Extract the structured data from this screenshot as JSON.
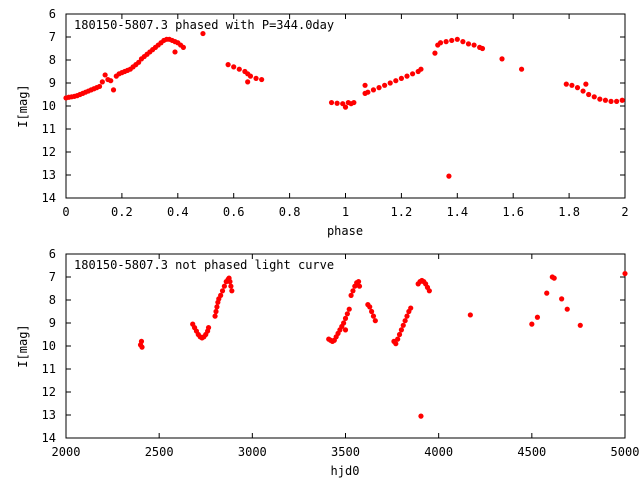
{
  "chart_data": [
    {
      "type": "scatter",
      "title": "180150-5807.3 phased with P=344.0day",
      "xlabel": "phase",
      "ylabel": "I[mag]",
      "xlim": [
        0,
        2
      ],
      "ylim": [
        6,
        14
      ],
      "y_inverted": true,
      "x_ticks": [
        "0",
        "0.2",
        "0.4",
        "0.6",
        "0.8",
        "1",
        "1.2",
        "1.4",
        "1.6",
        "1.8",
        "2"
      ],
      "y_ticks": [
        "6",
        "7",
        "8",
        "9",
        "10",
        "11",
        "12",
        "13",
        "14"
      ],
      "grid": false,
      "marker_color": "#ff0000",
      "series": [
        {
          "points": [
            [
              0.0,
              9.65
            ],
            [
              0.01,
              9.62
            ],
            [
              0.02,
              9.6
            ],
            [
              0.03,
              9.58
            ],
            [
              0.04,
              9.55
            ],
            [
              0.05,
              9.5
            ],
            [
              0.06,
              9.45
            ],
            [
              0.07,
              9.4
            ],
            [
              0.08,
              9.35
            ],
            [
              0.09,
              9.3
            ],
            [
              0.1,
              9.25
            ],
            [
              0.11,
              9.2
            ],
            [
              0.12,
              9.15
            ],
            [
              0.13,
              8.95
            ],
            [
              0.14,
              8.65
            ],
            [
              0.15,
              8.85
            ],
            [
              0.16,
              8.9
            ],
            [
              0.17,
              9.3
            ],
            [
              0.18,
              8.7
            ],
            [
              0.19,
              8.6
            ],
            [
              0.2,
              8.55
            ],
            [
              0.21,
              8.5
            ],
            [
              0.22,
              8.45
            ],
            [
              0.23,
              8.4
            ],
            [
              0.24,
              8.3
            ],
            [
              0.25,
              8.2
            ],
            [
              0.26,
              8.1
            ],
            [
              0.27,
              7.95
            ],
            [
              0.28,
              7.85
            ],
            [
              0.29,
              7.75
            ],
            [
              0.3,
              7.65
            ],
            [
              0.31,
              7.55
            ],
            [
              0.32,
              7.45
            ],
            [
              0.33,
              7.35
            ],
            [
              0.34,
              7.25
            ],
            [
              0.35,
              7.15
            ],
            [
              0.36,
              7.1
            ],
            [
              0.37,
              7.1
            ],
            [
              0.38,
              7.15
            ],
            [
              0.39,
              7.2
            ],
            [
              0.4,
              7.25
            ],
            [
              0.41,
              7.35
            ],
            [
              0.42,
              7.45
            ],
            [
              0.39,
              7.65
            ],
            [
              0.49,
              6.85
            ],
            [
              0.58,
              8.2
            ],
            [
              0.6,
              8.3
            ],
            [
              0.62,
              8.4
            ],
            [
              0.64,
              8.5
            ],
            [
              0.65,
              8.6
            ],
            [
              0.66,
              8.7
            ],
            [
              0.68,
              8.8
            ],
            [
              0.7,
              8.85
            ],
            [
              0.65,
              8.95
            ],
            [
              0.95,
              9.85
            ],
            [
              0.97,
              9.88
            ],
            [
              0.99,
              9.9
            ],
            [
              1.0,
              10.05
            ],
            [
              1.01,
              9.85
            ],
            [
              1.02,
              9.9
            ],
            [
              1.03,
              9.85
            ],
            [
              1.07,
              9.45
            ],
            [
              1.08,
              9.4
            ],
            [
              1.07,
              9.1
            ],
            [
              1.1,
              9.3
            ],
            [
              1.12,
              9.2
            ],
            [
              1.14,
              9.1
            ],
            [
              1.16,
              9.0
            ],
            [
              1.18,
              8.9
            ],
            [
              1.2,
              8.8
            ],
            [
              1.22,
              8.7
            ],
            [
              1.24,
              8.6
            ],
            [
              1.26,
              8.5
            ],
            [
              1.27,
              8.4
            ],
            [
              1.32,
              7.7
            ],
            [
              1.33,
              7.35
            ],
            [
              1.34,
              7.25
            ],
            [
              1.36,
              7.2
            ],
            [
              1.38,
              7.15
            ],
            [
              1.4,
              7.1
            ],
            [
              1.42,
              7.2
            ],
            [
              1.44,
              7.3
            ],
            [
              1.46,
              7.35
            ],
            [
              1.48,
              7.45
            ],
            [
              1.49,
              7.5
            ],
            [
              1.37,
              13.05
            ],
            [
              1.56,
              7.95
            ],
            [
              1.63,
              8.4
            ],
            [
              1.79,
              9.05
            ],
            [
              1.81,
              9.1
            ],
            [
              1.83,
              9.2
            ],
            [
              1.85,
              9.35
            ],
            [
              1.87,
              9.5
            ],
            [
              1.89,
              9.6
            ],
            [
              1.91,
              9.7
            ],
            [
              1.93,
              9.75
            ],
            [
              1.95,
              9.8
            ],
            [
              1.97,
              9.8
            ],
            [
              1.99,
              9.75
            ],
            [
              1.86,
              9.05
            ]
          ]
        }
      ]
    },
    {
      "type": "scatter",
      "title": "180150-5807.3 not phased light curve",
      "xlabel": "hjd0",
      "ylabel": "I[mag]",
      "xlim": [
        2000,
        5000
      ],
      "ylim": [
        6,
        14
      ],
      "y_inverted": true,
      "x_ticks": [
        "2000",
        "2500",
        "3000",
        "3500",
        "4000",
        "4500",
        "5000"
      ],
      "y_ticks": [
        "6",
        "7",
        "8",
        "9",
        "10",
        "11",
        "12",
        "13",
        "14"
      ],
      "grid": false,
      "marker_color": "#ff0000",
      "series": [
        {
          "points": [
            [
              2400,
              9.95
            ],
            [
              2405,
              9.8
            ],
            [
              2408,
              10.05
            ],
            [
              2680,
              9.05
            ],
            [
              2690,
              9.2
            ],
            [
              2700,
              9.35
            ],
            [
              2710,
              9.5
            ],
            [
              2720,
              9.6
            ],
            [
              2730,
              9.65
            ],
            [
              2740,
              9.6
            ],
            [
              2750,
              9.5
            ],
            [
              2760,
              9.35
            ],
            [
              2765,
              9.2
            ],
            [
              2800,
              8.7
            ],
            [
              2805,
              8.5
            ],
            [
              2810,
              8.3
            ],
            [
              2815,
              8.1
            ],
            [
              2820,
              7.95
            ],
            [
              2830,
              7.8
            ],
            [
              2840,
              7.6
            ],
            [
              2850,
              7.4
            ],
            [
              2860,
              7.2
            ],
            [
              2870,
              7.1
            ],
            [
              2875,
              7.05
            ],
            [
              2880,
              7.2
            ],
            [
              2885,
              7.4
            ],
            [
              2890,
              7.6
            ],
            [
              3410,
              9.7
            ],
            [
              3420,
              9.75
            ],
            [
              3430,
              9.8
            ],
            [
              3440,
              9.75
            ],
            [
              3450,
              9.6
            ],
            [
              3460,
              9.45
            ],
            [
              3470,
              9.3
            ],
            [
              3480,
              9.15
            ],
            [
              3490,
              9.0
            ],
            [
              3500,
              8.8
            ],
            [
              3510,
              8.6
            ],
            [
              3520,
              8.4
            ],
            [
              3500,
              9.3
            ],
            [
              3530,
              7.8
            ],
            [
              3540,
              7.6
            ],
            [
              3550,
              7.4
            ],
            [
              3560,
              7.25
            ],
            [
              3570,
              7.2
            ],
            [
              3575,
              7.4
            ],
            [
              3620,
              8.2
            ],
            [
              3630,
              8.3
            ],
            [
              3640,
              8.5
            ],
            [
              3650,
              8.7
            ],
            [
              3660,
              8.9
            ],
            [
              3760,
              9.8
            ],
            [
              3770,
              9.9
            ],
            [
              3780,
              9.7
            ],
            [
              3790,
              9.5
            ],
            [
              3800,
              9.3
            ],
            [
              3810,
              9.1
            ],
            [
              3820,
              8.9
            ],
            [
              3830,
              8.7
            ],
            [
              3840,
              8.5
            ],
            [
              3850,
              8.35
            ],
            [
              3890,
              7.3
            ],
            [
              3900,
              7.2
            ],
            [
              3910,
              7.15
            ],
            [
              3920,
              7.2
            ],
            [
              3930,
              7.3
            ],
            [
              3940,
              7.45
            ],
            [
              3950,
              7.6
            ],
            [
              3905,
              13.05
            ],
            [
              4170,
              8.65
            ],
            [
              4500,
              9.05
            ],
            [
              4530,
              8.75
            ],
            [
              4580,
              7.7
            ],
            [
              4610,
              7.0
            ],
            [
              4620,
              7.05
            ],
            [
              4660,
              7.95
            ],
            [
              4690,
              8.4
            ],
            [
              4760,
              9.1
            ],
            [
              5000,
              6.85
            ]
          ]
        }
      ]
    }
  ]
}
